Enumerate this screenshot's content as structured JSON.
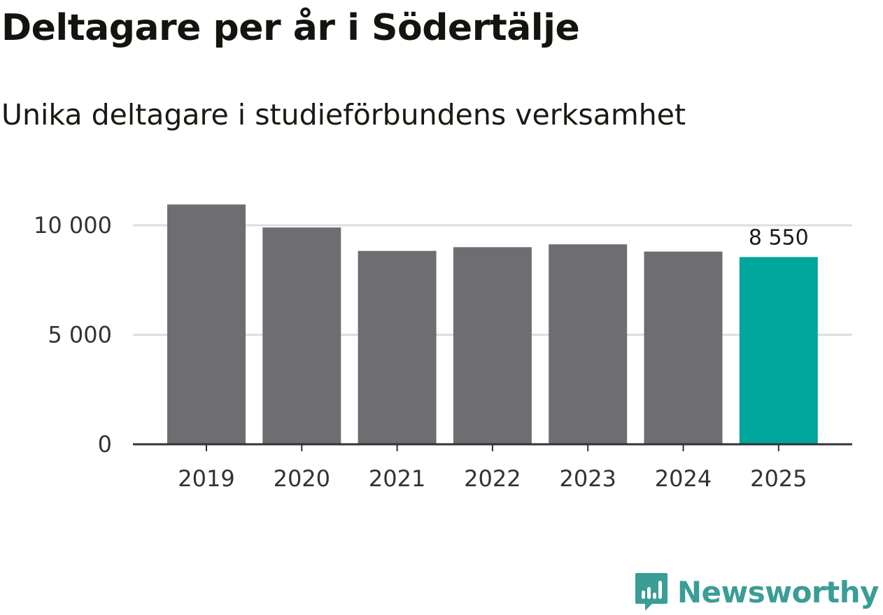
{
  "header": {
    "title": "Deltagare per år i Södertälje",
    "subtitle": "Unika deltagare i studieförbundens verksamhet"
  },
  "brand": {
    "name": "Newsworthy",
    "icon": "newsworthy-logo-icon",
    "color": "#3a9d96"
  },
  "colors": {
    "bar_default": "#6e6d72",
    "bar_highlight": "#00a59b",
    "gridline": "#dddddd",
    "axis": "#333333"
  },
  "chart_data": {
    "type": "bar",
    "title": "Deltagare per år i Södertälje",
    "subtitle": "Unika deltagare i studieförbundens verksamhet",
    "categories": [
      "2019",
      "2020",
      "2021",
      "2022",
      "2023",
      "2024",
      "2025"
    ],
    "values": [
      10950,
      9900,
      8830,
      9000,
      9130,
      8800,
      8550
    ],
    "highlight_index": 6,
    "data_labels": [
      {
        "index": 6,
        "text": "8 550"
      }
    ],
    "xlabel": "",
    "ylabel": "",
    "ylim": [
      0,
      10950
    ],
    "yticks": [
      0,
      5000,
      10000
    ],
    "ytick_labels": [
      "0",
      "5 000",
      "10 000"
    ],
    "grid": true
  }
}
